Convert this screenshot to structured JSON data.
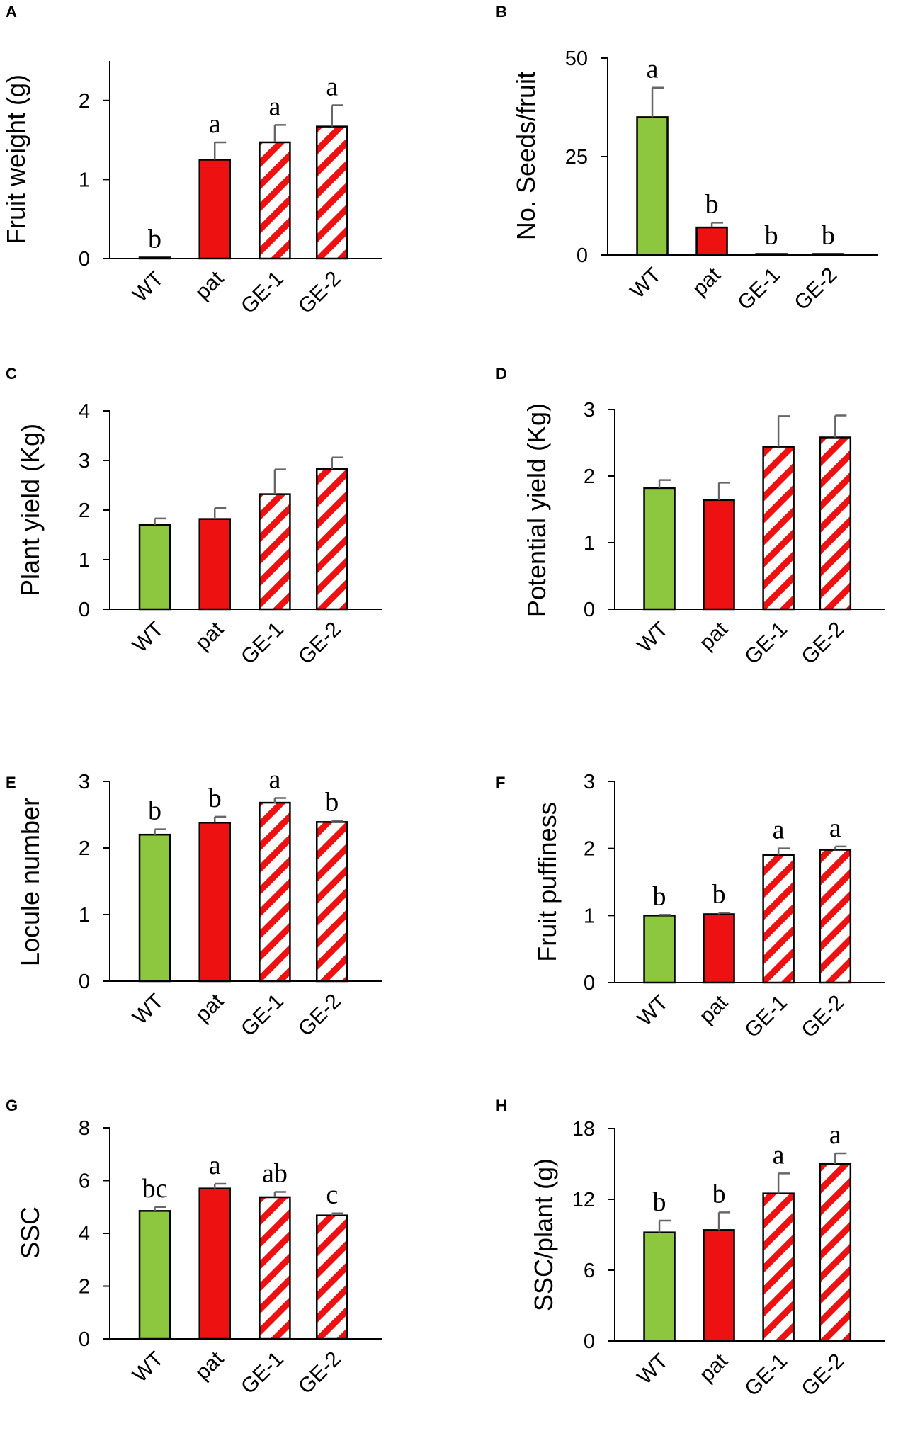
{
  "colors": {
    "wt": "#8dc63f",
    "pat": "#ee1111",
    "stripe": "#ee1111",
    "stripe_bg": "#ffffff",
    "error_bar": "#666666",
    "axis": "#000000"
  },
  "chart_data": [
    {
      "panel": "A",
      "type": "bar",
      "ylabel": "Fruit weight (g)",
      "categories": [
        "WT",
        "pat",
        "GE-1",
        "GE-2"
      ],
      "fills": [
        "wt",
        "pat",
        "striped",
        "striped"
      ],
      "values": [
        0.01,
        1.25,
        1.47,
        1.67
      ],
      "errors": [
        0.0,
        0.22,
        0.22,
        0.27
      ],
      "significance": [
        "b",
        "a",
        "a",
        "a"
      ],
      "yticks": [
        0,
        1,
        2
      ],
      "ylim": [
        0,
        2.5
      ]
    },
    {
      "panel": "B",
      "type": "bar",
      "ylabel": "No. Seeds/fruit",
      "categories": [
        "WT",
        "pat",
        "GE-1",
        "GE-2"
      ],
      "fills": [
        "wt",
        "pat",
        "striped",
        "striped"
      ],
      "values": [
        35,
        7,
        0.2,
        0.2
      ],
      "errors": [
        7.5,
        1.2,
        0,
        0
      ],
      "significance": [
        "a",
        "b",
        "b",
        "b"
      ],
      "yticks": [
        0,
        25,
        50
      ],
      "ylim": [
        0,
        50
      ]
    },
    {
      "panel": "C",
      "type": "bar",
      "ylabel": "Plant yield (Kg)",
      "categories": [
        "WT",
        "pat",
        "GE-1",
        "GE-2"
      ],
      "fills": [
        "wt",
        "pat",
        "striped",
        "striped"
      ],
      "values": [
        1.7,
        1.82,
        2.32,
        2.83
      ],
      "errors": [
        0.13,
        0.22,
        0.5,
        0.23
      ],
      "significance": [
        "",
        "",
        "",
        ""
      ],
      "yticks": [
        0,
        1,
        2,
        3,
        4
      ],
      "ylim": [
        0,
        4
      ]
    },
    {
      "panel": "D",
      "type": "bar",
      "ylabel": "Potential yield (Kg)",
      "categories": [
        "WT",
        "pat",
        "GE-1",
        "GE-2"
      ],
      "fills": [
        "wt",
        "pat",
        "striped",
        "striped"
      ],
      "values": [
        1.82,
        1.64,
        2.44,
        2.58
      ],
      "errors": [
        0.12,
        0.26,
        0.46,
        0.33
      ],
      "significance": [
        "",
        "",
        "",
        ""
      ],
      "yticks": [
        0,
        1,
        2,
        3
      ],
      "ylim": [
        0,
        3
      ]
    },
    {
      "panel": "E",
      "type": "bar",
      "ylabel": "Locule number",
      "categories": [
        "WT",
        "pat",
        "GE-1",
        "GE-2"
      ],
      "fills": [
        "wt",
        "pat",
        "striped",
        "striped"
      ],
      "values": [
        2.2,
        2.38,
        2.68,
        2.39
      ],
      "errors": [
        0.08,
        0.09,
        0.07,
        0.02
      ],
      "significance": [
        "b",
        "b",
        "a",
        "b"
      ],
      "yticks": [
        0,
        1,
        2,
        3
      ],
      "ylim": [
        0,
        3
      ]
    },
    {
      "panel": "F",
      "type": "bar",
      "ylabel": "Fruit puffiness",
      "categories": [
        "WT",
        "pat",
        "GE-1",
        "GE-2"
      ],
      "fills": [
        "wt",
        "pat",
        "striped",
        "striped"
      ],
      "values": [
        1.0,
        1.02,
        1.9,
        1.98
      ],
      "errors": [
        0.01,
        0.02,
        0.1,
        0.05
      ],
      "significance": [
        "b",
        "b",
        "a",
        "a"
      ],
      "yticks": [
        0,
        1,
        2,
        3
      ],
      "ylim": [
        0,
        3
      ]
    },
    {
      "panel": "G",
      "type": "bar",
      "ylabel": "SSC",
      "categories": [
        "WT",
        "pat",
        "GE-1",
        "GE-2"
      ],
      "fills": [
        "wt",
        "pat",
        "striped",
        "striped"
      ],
      "values": [
        4.85,
        5.7,
        5.37,
        4.68
      ],
      "errors": [
        0.15,
        0.18,
        0.2,
        0.08
      ],
      "significance": [
        "bc",
        "a",
        "ab",
        "c"
      ],
      "yticks": [
        0,
        2,
        4,
        6,
        8
      ],
      "ylim": [
        0,
        8
      ]
    },
    {
      "panel": "H",
      "type": "bar",
      "ylabel": "SSC/plant (g)",
      "categories": [
        "WT",
        "pat",
        "GE-1",
        "GE-2"
      ],
      "fills": [
        "wt",
        "pat",
        "striped",
        "striped"
      ],
      "values": [
        9.2,
        9.4,
        12.5,
        15.0
      ],
      "errors": [
        1.0,
        1.5,
        1.7,
        0.9
      ],
      "significance": [
        "b",
        "b",
        "a",
        "a"
      ],
      "yticks": [
        0,
        6,
        12,
        18
      ],
      "ylim": [
        0,
        18
      ]
    }
  ]
}
